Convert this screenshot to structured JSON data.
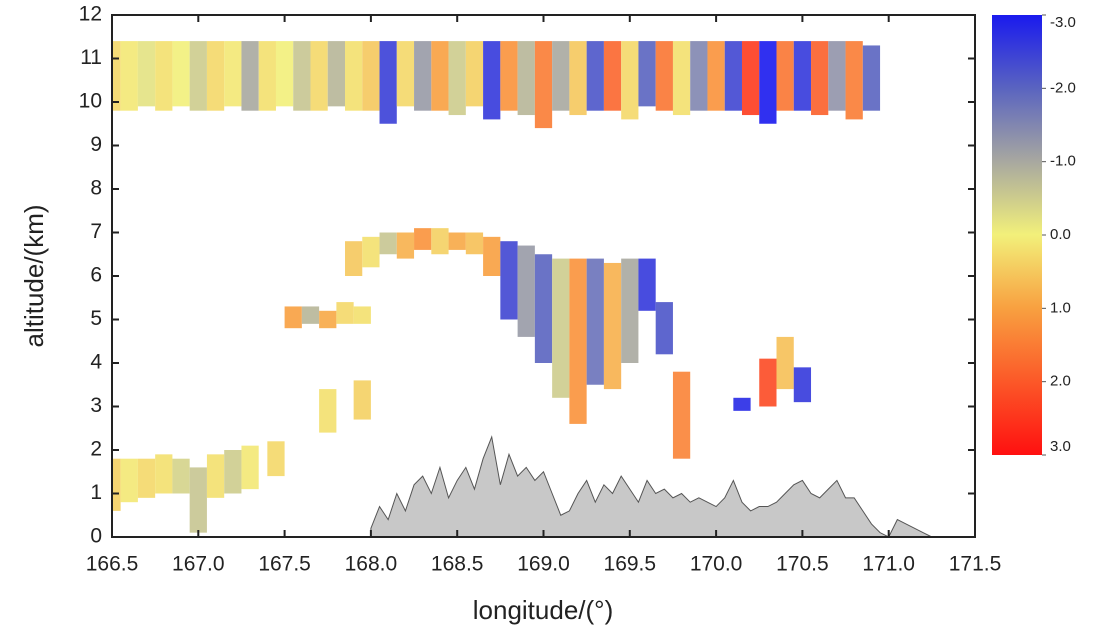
{
  "chart_data": {
    "type": "heatmap",
    "xlabel": "longitude/(°)",
    "ylabel": "altitude/(km)",
    "xlim": [
      166.5,
      171.5
    ],
    "xticks": [
      166.5,
      {
        "value": 167,
        "label": "167.0"
      },
      167.5,
      {
        "value": 168,
        "label": "168.0"
      },
      168.5,
      {
        "value": 169,
        "label": "169.0"
      },
      169.5,
      {
        "value": 170,
        "label": "170.0"
      },
      170.5,
      {
        "value": 171,
        "label": "171.0"
      },
      171.5
    ],
    "ylim": [
      0,
      12
    ],
    "yticks": [
      0,
      1,
      2,
      3,
      4,
      5,
      6,
      7,
      8,
      9,
      10,
      11,
      12
    ],
    "clim": [
      -3,
      3
    ],
    "cticks": [
      {
        "value": -3,
        "label": "-3.0"
      },
      {
        "value": -2,
        "label": "-2.0"
      },
      {
        "value": -1,
        "label": "-1.0"
      },
      {
        "value": 0,
        "label": "0.0"
      },
      {
        "value": 1,
        "label": "1.0"
      },
      {
        "value": 2,
        "label": "2.0"
      },
      {
        "value": 3,
        "label": "3.0"
      }
    ],
    "colorscale": {
      "values": [
        -3,
        -2,
        -1,
        0,
        1,
        3
      ],
      "colors": [
        "#1a1aee",
        "#5a64c0",
        "#a8a8a0",
        "#f2f07a",
        "#f8a040",
        "#ff1010"
      ]
    },
    "cells": {
      "x": [
        166.5,
        166.6,
        166.7,
        166.8,
        166.9,
        167.0,
        167.1,
        167.2,
        167.3,
        167.4,
        167.5,
        167.6,
        167.7,
        167.8,
        167.9,
        168.0,
        168.1,
        168.2,
        168.3,
        168.4,
        168.5,
        168.6,
        168.7,
        168.8,
        168.9,
        169.0,
        169.1,
        169.2,
        169.3,
        169.4,
        169.5,
        169.6,
        169.7,
        169.8,
        169.9,
        170.0,
        170.1,
        170.2,
        170.3,
        170.4,
        170.5,
        170.6,
        170.7,
        170.8,
        170.9,
        167.55,
        167.65,
        167.75,
        167.85,
        167.95,
        167.9,
        168.0,
        168.1,
        168.2,
        168.3,
        168.4,
        168.5,
        168.6,
        168.7,
        168.8,
        168.9,
        169.0,
        169.1,
        169.2,
        169.3,
        169.4,
        169.5,
        169.6,
        169.7,
        169.8,
        166.5,
        166.6,
        166.7,
        166.8,
        166.9,
        167.0,
        167.1,
        167.2,
        167.3,
        167.45,
        167.75,
        167.95,
        170.3,
        170.4,
        170.5,
        170.15
      ],
      "y0": [
        9.8,
        9.8,
        9.9,
        9.8,
        9.9,
        9.8,
        9.8,
        9.9,
        9.8,
        9.8,
        9.9,
        9.8,
        9.8,
        9.9,
        9.8,
        9.8,
        9.5,
        9.9,
        9.8,
        9.8,
        9.7,
        9.9,
        9.6,
        9.8,
        9.7,
        9.4,
        9.8,
        9.7,
        9.8,
        9.8,
        9.6,
        9.9,
        9.8,
        9.7,
        9.8,
        9.8,
        9.8,
        9.7,
        9.5,
        9.8,
        9.8,
        9.7,
        9.8,
        9.6,
        9.8,
        4.8,
        4.9,
        4.8,
        4.9,
        4.9,
        6.0,
        6.2,
        6.5,
        6.4,
        6.6,
        6.5,
        6.6,
        6.5,
        6.0,
        5.0,
        4.6,
        4.0,
        3.2,
        2.6,
        3.5,
        3.4,
        4.0,
        5.2,
        4.2,
        1.8,
        0.6,
        0.8,
        0.9,
        1.0,
        1.0,
        0.1,
        0.9,
        1.0,
        1.1,
        1.4,
        2.4,
        2.7,
        3.0,
        3.4,
        3.1,
        2.9
      ],
      "y1": [
        11.4,
        11.4,
        11.4,
        11.4,
        11.4,
        11.4,
        11.4,
        11.4,
        11.4,
        11.4,
        11.4,
        11.4,
        11.4,
        11.4,
        11.4,
        11.4,
        11.4,
        11.4,
        11.4,
        11.4,
        11.4,
        11.4,
        11.4,
        11.4,
        11.4,
        11.4,
        11.4,
        11.4,
        11.4,
        11.4,
        11.4,
        11.4,
        11.4,
        11.4,
        11.4,
        11.4,
        11.4,
        11.4,
        11.4,
        11.4,
        11.4,
        11.4,
        11.4,
        11.4,
        11.3,
        5.3,
        5.3,
        5.2,
        5.4,
        5.3,
        6.8,
        6.9,
        7.0,
        7.0,
        7.1,
        7.1,
        7.0,
        7.0,
        6.9,
        6.8,
        6.7,
        6.5,
        6.4,
        6.4,
        6.4,
        6.3,
        6.4,
        6.4,
        5.4,
        3.8,
        1.8,
        1.8,
        1.8,
        1.9,
        1.8,
        1.6,
        1.9,
        2.0,
        2.1,
        2.2,
        3.4,
        3.6,
        4.1,
        4.6,
        3.9,
        3.2
      ],
      "values": [
        0.3,
        0.1,
        -0.2,
        0.2,
        0,
        -0.5,
        0.3,
        0.1,
        -1.0,
        0.2,
        0,
        -0.6,
        0.3,
        -0.8,
        0.2,
        0.5,
        -2.5,
        0.3,
        -1.2,
        1.0,
        -0.5,
        0.4,
        -2.6,
        1.2,
        -0.8,
        1.5,
        -1.0,
        0.5,
        -2.2,
        1.8,
        0.3,
        -2.0,
        1.6,
        0.2,
        -1.5,
        1.2,
        -2.4,
        2.4,
        -3.0,
        1.6,
        -2.6,
        1.9,
        -1.3,
        1.5,
        -2.0,
        1.0,
        -0.8,
        0.9,
        0.3,
        0.2,
        0.5,
        0.2,
        -0.6,
        0.8,
        1.2,
        0.4,
        0.9,
        0.6,
        1.0,
        -2.4,
        -1.2,
        -2.0,
        -0.5,
        1.2,
        -1.8,
        0.8,
        -1.0,
        -2.6,
        -2.2,
        1.4,
        0.4,
        0.1,
        0.3,
        0.2,
        -0.4,
        -0.6,
        0.2,
        -0.5,
        0.1,
        0.3,
        0.2,
        0.4,
        2.2,
        0.6,
        -2.6,
        -2.8
      ]
    },
    "terrain": {
      "color": "#c8c8c8",
      "x": [
        168.0,
        168.05,
        168.1,
        168.15,
        168.2,
        168.25,
        168.3,
        168.35,
        168.4,
        168.45,
        168.5,
        168.55,
        168.6,
        168.65,
        168.7,
        168.75,
        168.8,
        168.85,
        168.9,
        168.95,
        169.0,
        169.05,
        169.1,
        169.15,
        169.2,
        169.25,
        169.3,
        169.35,
        169.4,
        169.45,
        169.5,
        169.55,
        169.6,
        169.65,
        169.7,
        169.75,
        169.8,
        169.85,
        169.9,
        169.95,
        170.0,
        170.05,
        170.1,
        170.15,
        170.2,
        170.25,
        170.3,
        170.35,
        170.4,
        170.45,
        170.5,
        170.55,
        170.6,
        170.65,
        170.7,
        170.75,
        170.8,
        170.85,
        170.9,
        170.95,
        171.0,
        171.05,
        171.1,
        171.15,
        171.2,
        171.25
      ],
      "values": [
        0.2,
        0.7,
        0.4,
        1.0,
        0.6,
        1.2,
        1.4,
        1.0,
        1.6,
        0.9,
        1.3,
        1.6,
        1.1,
        1.8,
        2.3,
        1.2,
        1.9,
        1.4,
        1.6,
        1.3,
        1.5,
        1.0,
        0.5,
        0.6,
        1.0,
        1.3,
        0.8,
        1.2,
        1.0,
        1.4,
        1.1,
        0.8,
        1.3,
        1.0,
        1.1,
        0.9,
        1.0,
        0.8,
        0.9,
        0.8,
        0.7,
        0.9,
        1.3,
        0.8,
        0.6,
        0.7,
        0.7,
        0.8,
        1.0,
        1.2,
        1.3,
        1.0,
        0.9,
        1.1,
        1.3,
        0.9,
        0.9,
        0.6,
        0.3,
        0.1,
        0.0,
        0.4,
        0.3,
        0.2,
        0.1,
        0.0
      ]
    }
  }
}
